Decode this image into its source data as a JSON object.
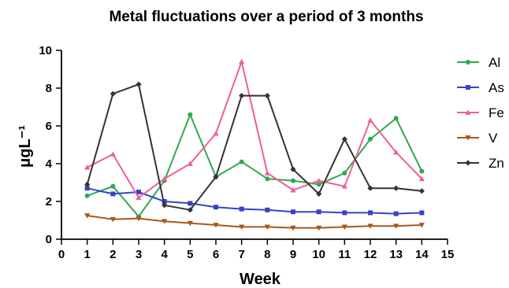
{
  "chart_data": {
    "type": "line",
    "title": "Metal fluctuations over a period of 3 months",
    "xlabel": "Week",
    "ylabel": "μgL⁻¹",
    "xlim": [
      0,
      15
    ],
    "ylim": [
      0,
      10
    ],
    "x_ticks": [
      0,
      1,
      2,
      3,
      4,
      5,
      6,
      7,
      8,
      9,
      10,
      11,
      12,
      13,
      14,
      15
    ],
    "y_ticks": [
      0,
      2,
      4,
      6,
      8,
      10
    ],
    "grid": false,
    "legend_position": "right",
    "x": [
      1,
      2,
      3,
      4,
      5,
      6,
      7,
      8,
      9,
      10,
      11,
      12,
      13,
      14
    ],
    "series": [
      {
        "name": "Al",
        "color": "#2fa84f",
        "marker": "circle",
        "values": [
          2.3,
          2.8,
          1.2,
          3.1,
          6.6,
          3.3,
          4.1,
          3.2,
          3.1,
          2.9,
          3.5,
          5.3,
          6.4,
          3.6
        ]
      },
      {
        "name": "As",
        "color": "#3344c4",
        "marker": "square",
        "values": [
          2.7,
          2.4,
          2.5,
          2.0,
          1.9,
          1.7,
          1.6,
          1.55,
          1.45,
          1.45,
          1.4,
          1.4,
          1.35,
          1.4
        ]
      },
      {
        "name": "Fe",
        "color": "#ef5f93",
        "marker": "triangle-up",
        "values": [
          3.8,
          4.5,
          2.2,
          3.2,
          4.0,
          5.6,
          9.4,
          3.5,
          2.6,
          3.1,
          2.8,
          6.3,
          4.6,
          3.2
        ]
      },
      {
        "name": "V",
        "color": "#a8581c",
        "marker": "triangle-down",
        "values": [
          1.25,
          1.05,
          1.1,
          0.95,
          0.85,
          0.75,
          0.65,
          0.65,
          0.6,
          0.6,
          0.65,
          0.7,
          0.7,
          0.75
        ]
      },
      {
        "name": "Zn",
        "color": "#333333",
        "marker": "diamond",
        "values": [
          2.9,
          7.7,
          8.2,
          1.8,
          1.55,
          3.3,
          7.6,
          7.6,
          3.7,
          2.4,
          5.3,
          2.7,
          2.7,
          2.55
        ]
      }
    ]
  }
}
